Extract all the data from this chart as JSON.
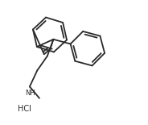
{
  "background": "#ffffff",
  "line_color": "#2a2a2a",
  "line_width": 1.3,
  "figsize": [
    1.84,
    1.55
  ],
  "dpi": 100,
  "xlim": [
    0,
    184
  ],
  "ylim": [
    0,
    155
  ]
}
